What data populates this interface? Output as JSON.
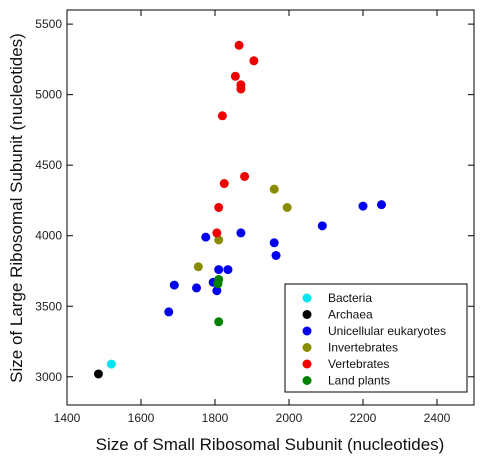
{
  "chart_data": {
    "type": "scatter",
    "xlabel": "Size of Small Ribosomal Subunit (nucleotides)",
    "ylabel": "Size of Large Ribosomal Subunit (nucleotides)",
    "xlim": [
      1400,
      2500
    ],
    "ylim": [
      2800,
      5600
    ],
    "xticks": [
      1400,
      1600,
      1800,
      2000,
      2200,
      2400
    ],
    "yticks": [
      3000,
      3500,
      4000,
      4500,
      5000,
      5500
    ],
    "grid": false,
    "legend_position": "bottom-right",
    "series": [
      {
        "name": "Bacteria",
        "color": "#00e5ee",
        "points": [
          [
            1520,
            3090
          ]
        ]
      },
      {
        "name": "Archaea",
        "color": "#000000",
        "points": [
          [
            1485,
            3020
          ]
        ]
      },
      {
        "name": "Unicellular eukaryotes",
        "color": "#0000ee",
        "points": [
          [
            1675,
            3460
          ],
          [
            1690,
            3650
          ],
          [
            1750,
            3630
          ],
          [
            1775,
            3990
          ],
          [
            1795,
            3670
          ],
          [
            1805,
            3610
          ],
          [
            1810,
            3760
          ],
          [
            1835,
            3760
          ],
          [
            1870,
            4020
          ],
          [
            1960,
            3950
          ],
          [
            1965,
            3860
          ],
          [
            2090,
            4070
          ],
          [
            2200,
            4210
          ],
          [
            2250,
            4220
          ]
        ]
      },
      {
        "name": "Invertebrates",
        "color": "#8b8b00",
        "points": [
          [
            1755,
            3780
          ],
          [
            1810,
            3970
          ],
          [
            1960,
            4330
          ],
          [
            1995,
            4200
          ]
        ]
      },
      {
        "name": "Vertebrates",
        "color": "#ee0000",
        "points": [
          [
            1805,
            4020
          ],
          [
            1810,
            4200
          ],
          [
            1820,
            4850
          ],
          [
            1825,
            4370
          ],
          [
            1855,
            5130
          ],
          [
            1865,
            5350
          ],
          [
            1870,
            5040
          ],
          [
            1870,
            5070
          ],
          [
            1880,
            4420
          ],
          [
            1905,
            5240
          ]
        ]
      },
      {
        "name": "Land plants",
        "color": "#008000",
        "points": [
          [
            1808,
            3660
          ],
          [
            1810,
            3690
          ],
          [
            1810,
            3390
          ]
        ]
      }
    ]
  }
}
